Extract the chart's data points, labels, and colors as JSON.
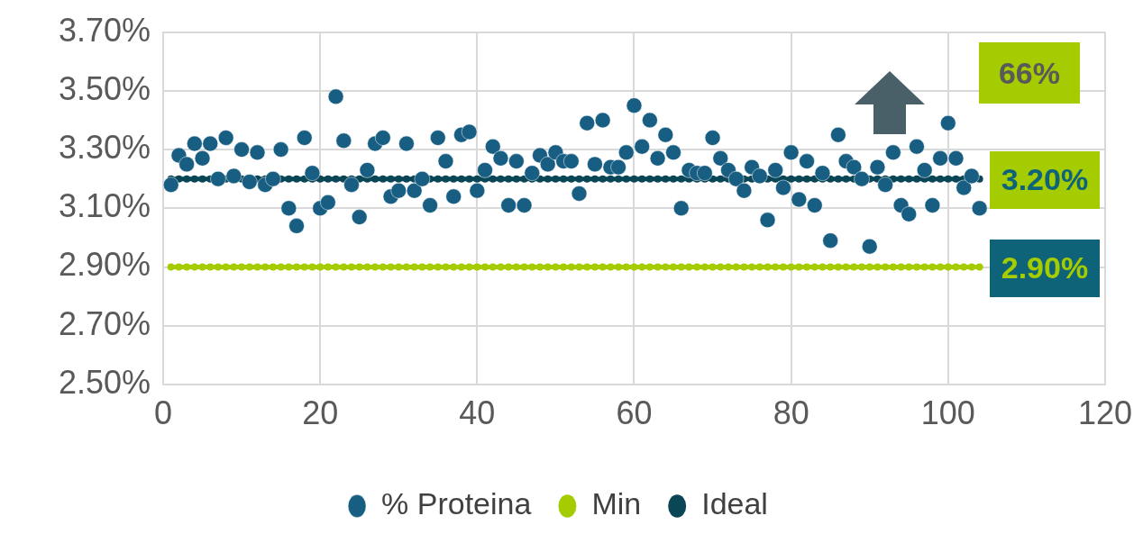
{
  "chart_data": {
    "type": "scatter",
    "x": [
      1,
      2,
      3,
      4,
      5,
      6,
      7,
      8,
      9,
      10,
      11,
      12,
      13,
      14,
      15,
      16,
      17,
      18,
      19,
      20,
      21,
      22,
      23,
      24,
      25,
      26,
      27,
      28,
      29,
      30,
      31,
      32,
      33,
      34,
      35,
      36,
      37,
      38,
      39,
      40,
      41,
      42,
      43,
      44,
      45,
      46,
      47,
      48,
      49,
      50,
      51,
      52,
      53,
      54,
      55,
      56,
      57,
      58,
      59,
      60,
      61,
      62,
      63,
      64,
      65,
      66,
      67,
      68,
      69,
      70,
      71,
      72,
      73,
      74,
      75,
      76,
      77,
      78,
      79,
      80,
      81,
      82,
      83,
      84,
      85,
      86,
      87,
      88,
      89,
      90,
      91,
      92,
      93,
      94,
      95,
      96,
      97,
      98,
      99,
      100,
      101,
      102,
      103,
      104
    ],
    "series": [
      {
        "name": "% Proteina",
        "color": "#175e82",
        "values": [
          3.18,
          3.28,
          3.25,
          3.32,
          3.27,
          3.32,
          3.2,
          3.34,
          3.21,
          3.3,
          3.19,
          3.29,
          3.18,
          3.2,
          3.3,
          3.1,
          3.04,
          3.34,
          3.22,
          3.1,
          3.12,
          3.48,
          3.33,
          3.18,
          3.07,
          3.23,
          3.32,
          3.34,
          3.14,
          3.16,
          3.32,
          3.16,
          3.2,
          3.11,
          3.34,
          3.26,
          3.14,
          3.35,
          3.36,
          3.16,
          3.23,
          3.31,
          3.27,
          3.11,
          3.26,
          3.11,
          3.22,
          3.28,
          3.25,
          3.29,
          3.26,
          3.26,
          3.15,
          3.39,
          3.25,
          3.4,
          3.24,
          3.24,
          3.29,
          3.45,
          3.31,
          3.4,
          3.27,
          3.35,
          3.29,
          3.1,
          3.23,
          3.22,
          3.22,
          3.34,
          3.27,
          3.23,
          3.2,
          3.16,
          3.24,
          3.21,
          3.06,
          3.23,
          3.17,
          3.29,
          3.13,
          3.26,
          3.11,
          3.22,
          2.99,
          3.35,
          3.26,
          3.24,
          3.2,
          2.97,
          3.24,
          3.18,
          3.29,
          3.11,
          3.08,
          3.31,
          3.23,
          3.11,
          3.27,
          3.39,
          3.27,
          3.17,
          3.21,
          3.1
        ]
      },
      {
        "name": "Min",
        "type": "line",
        "color": "#a5cc00",
        "values": [
          2.9,
          2.9,
          2.9,
          2.9,
          2.9,
          2.9,
          2.9,
          2.9,
          2.9,
          2.9,
          2.9,
          2.9,
          2.9,
          2.9,
          2.9,
          2.9,
          2.9,
          2.9,
          2.9,
          2.9,
          2.9,
          2.9,
          2.9,
          2.9,
          2.9,
          2.9,
          2.9,
          2.9,
          2.9,
          2.9,
          2.9,
          2.9,
          2.9,
          2.9,
          2.9,
          2.9,
          2.9,
          2.9,
          2.9,
          2.9,
          2.9,
          2.9,
          2.9,
          2.9,
          2.9,
          2.9,
          2.9,
          2.9,
          2.9,
          2.9,
          2.9,
          2.9,
          2.9,
          2.9,
          2.9,
          2.9,
          2.9,
          2.9,
          2.9,
          2.9,
          2.9,
          2.9,
          2.9,
          2.9,
          2.9,
          2.9,
          2.9,
          2.9,
          2.9,
          2.9,
          2.9,
          2.9,
          2.9,
          2.9,
          2.9,
          2.9,
          2.9,
          2.9,
          2.9,
          2.9,
          2.9,
          2.9,
          2.9,
          2.9,
          2.9,
          2.9,
          2.9,
          2.9,
          2.9,
          2.9,
          2.9,
          2.9,
          2.9,
          2.9,
          2.9,
          2.9,
          2.9,
          2.9,
          2.9,
          2.9,
          2.9,
          2.9,
          2.9,
          2.9
        ]
      },
      {
        "name": "Ideal",
        "type": "line",
        "color": "#0a4656",
        "values": [
          3.2,
          3.2,
          3.2,
          3.2,
          3.2,
          3.2,
          3.2,
          3.2,
          3.2,
          3.2,
          3.2,
          3.2,
          3.2,
          3.2,
          3.2,
          3.2,
          3.2,
          3.2,
          3.2,
          3.2,
          3.2,
          3.2,
          3.2,
          3.2,
          3.2,
          3.2,
          3.2,
          3.2,
          3.2,
          3.2,
          3.2,
          3.2,
          3.2,
          3.2,
          3.2,
          3.2,
          3.2,
          3.2,
          3.2,
          3.2,
          3.2,
          3.2,
          3.2,
          3.2,
          3.2,
          3.2,
          3.2,
          3.2,
          3.2,
          3.2,
          3.2,
          3.2,
          3.2,
          3.2,
          3.2,
          3.2,
          3.2,
          3.2,
          3.2,
          3.2,
          3.2,
          3.2,
          3.2,
          3.2,
          3.2,
          3.2,
          3.2,
          3.2,
          3.2,
          3.2,
          3.2,
          3.2,
          3.2,
          3.2,
          3.2,
          3.2,
          3.2,
          3.2,
          3.2,
          3.2,
          3.2,
          3.2,
          3.2,
          3.2,
          3.2,
          3.2,
          3.2,
          3.2,
          3.2,
          3.2,
          3.2,
          3.2,
          3.2,
          3.2,
          3.2,
          3.2,
          3.2,
          3.2,
          3.2,
          3.2,
          3.2,
          3.2,
          3.2,
          3.2
        ]
      }
    ],
    "xlim": [
      0,
      120
    ],
    "xticks": [
      0,
      20,
      40,
      60,
      80,
      100,
      120
    ],
    "ylim": [
      2.5,
      3.7
    ],
    "yticks": [
      {
        "value": 2.5,
        "label": "2.50%"
      },
      {
        "value": 2.7,
        "label": "2.70%"
      },
      {
        "value": 2.9,
        "label": "2.90%"
      },
      {
        "value": 3.1,
        "label": "3.10%"
      },
      {
        "value": 3.3,
        "label": "3.30%"
      },
      {
        "value": 3.5,
        "label": "3.50%"
      },
      {
        "value": 3.7,
        "label": "3.70%"
      }
    ],
    "grid": true,
    "legend": "bottom",
    "marker": "circle",
    "annotations": [
      "66%",
      "3.20%",
      "2.90%"
    ]
  }
}
